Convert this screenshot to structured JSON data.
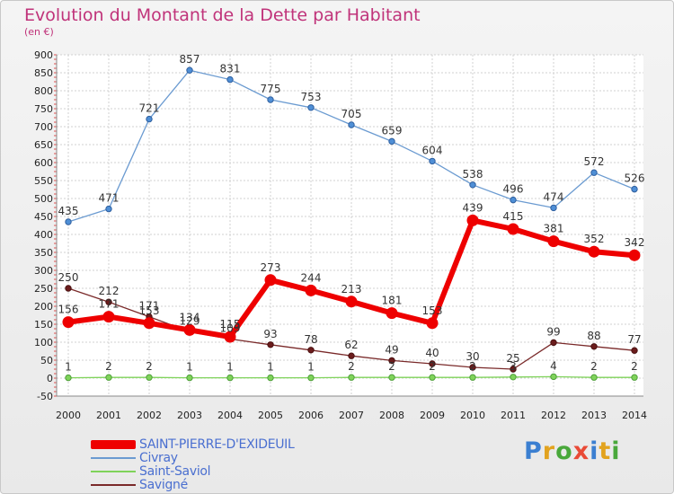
{
  "header": {
    "title": "Evolution du Montant de la Dette par Habitant",
    "subtitle": "(en €)"
  },
  "logo": {
    "text": "Proxiti",
    "colors": [
      "#3b7fd1",
      "#e2a31f",
      "#49a83b",
      "#e94a36",
      "#3b7fd1",
      "#e2a31f",
      "#49a83b"
    ]
  },
  "chart_data": {
    "type": "line",
    "x": [
      "2000",
      "2001",
      "2002",
      "2003",
      "2004",
      "2005",
      "2006",
      "2007",
      "2008",
      "2009",
      "2010",
      "2011",
      "2012",
      "2013",
      "2014"
    ],
    "ylim": [
      -50,
      900
    ],
    "yticks": [
      -50,
      0,
      50,
      100,
      150,
      200,
      250,
      300,
      350,
      400,
      450,
      500,
      550,
      600,
      650,
      700,
      750,
      800,
      850,
      900
    ],
    "grid": true,
    "legend_position": "bottom-left",
    "series": [
      {
        "name": "SAINT-PIERRE-D'EXIDEUIL",
        "color": "#ee0000",
        "values": [
          156,
          171,
          153,
          134,
          115,
          273,
          244,
          213,
          181,
          153,
          439,
          415,
          381,
          352,
          342
        ]
      },
      {
        "name": "Civray",
        "color": "#6b9bd1",
        "values": [
          435,
          471,
          721,
          857,
          831,
          775,
          753,
          705,
          659,
          604,
          538,
          496,
          474,
          572,
          526
        ]
      },
      {
        "name": "Saint-Saviol",
        "color": "#7fd35a",
        "values": [
          1,
          2,
          2,
          1,
          1,
          1,
          1,
          2,
          2,
          2,
          2,
          3,
          4,
          2,
          2
        ]
      },
      {
        "name": "Savigné",
        "color": "#7a2a2a",
        "values": [
          250,
          212,
          171,
          129,
          109,
          93,
          78,
          62,
          49,
          40,
          30,
          25,
          99,
          88,
          77
        ]
      }
    ]
  }
}
